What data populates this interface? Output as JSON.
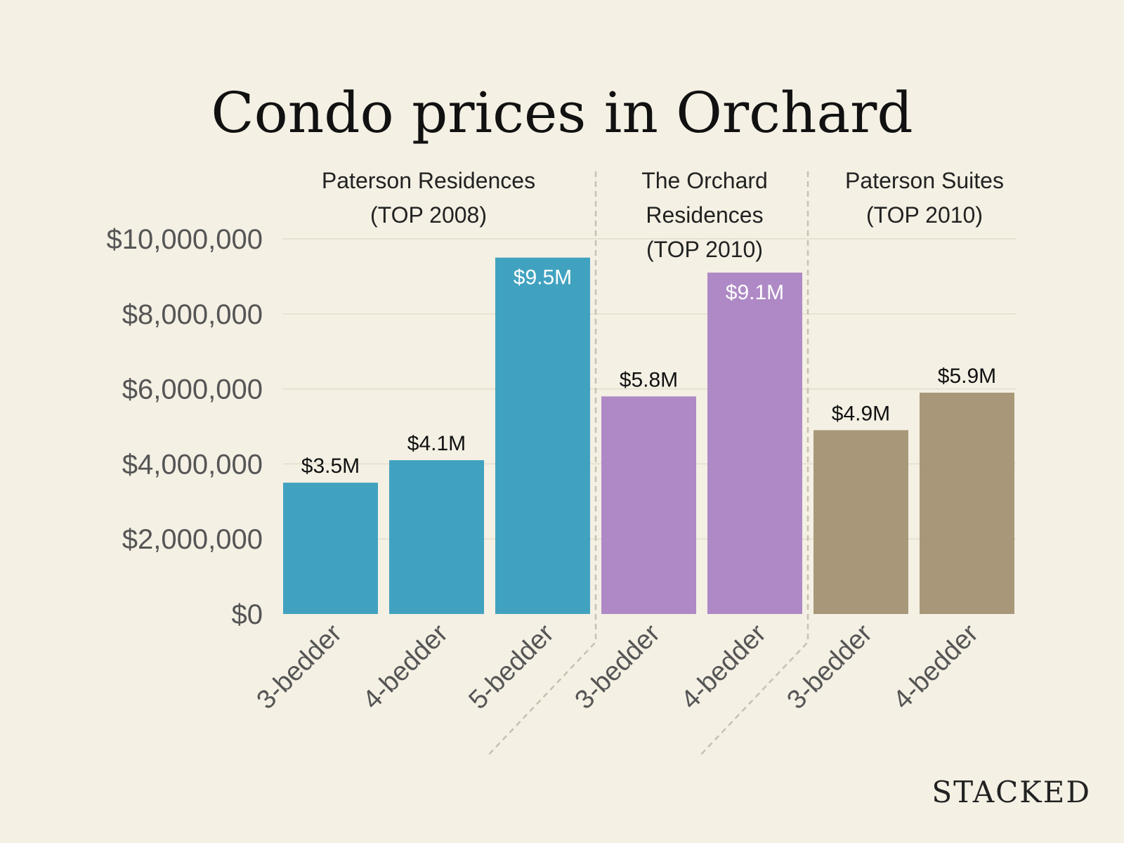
{
  "chart_data": {
    "type": "bar",
    "title": "Condo prices in Orchard",
    "xlabel": "",
    "ylabel": "",
    "ylim": [
      0,
      10000000
    ],
    "y_ticks": [
      "$0",
      "$2,000,000",
      "$4,000,000",
      "$6,000,000",
      "$8,000,000",
      "$10,000,000"
    ],
    "y_tick_values": [
      0,
      2000000,
      4000000,
      6000000,
      8000000,
      10000000
    ],
    "grid": true,
    "groups": [
      {
        "name_lines": [
          "Paterson Residences",
          "(TOP 2008)"
        ],
        "color": "#41a2c0",
        "bars": [
          {
            "category": "3-bedder",
            "value": 3500000,
            "label": "$3.5M",
            "label_inside": false
          },
          {
            "category": "4-bedder",
            "value": 4100000,
            "label": "$4.1M",
            "label_inside": false
          },
          {
            "category": "5-bedder",
            "value": 9500000,
            "label": "$9.5M",
            "label_inside": true
          }
        ]
      },
      {
        "name_lines": [
          "The Orchard",
          "Residences",
          "(TOP 2010)"
        ],
        "color": "#ae89c5",
        "bars": [
          {
            "category": "3-bedder",
            "value": 5800000,
            "label": "$5.8M",
            "label_inside": false
          },
          {
            "category": "4-bedder",
            "value": 9100000,
            "label": "$9.1M",
            "label_inside": true
          }
        ]
      },
      {
        "name_lines": [
          "Paterson Suites",
          "(TOP 2010)"
        ],
        "color": "#a89879",
        "bars": [
          {
            "category": "3-bedder",
            "value": 4900000,
            "label": "$4.9M",
            "label_inside": false
          },
          {
            "category": "4-bedder",
            "value": 5900000,
            "label": "$5.9M",
            "label_inside": false
          }
        ]
      }
    ]
  },
  "brand": "STACKED",
  "colors": {
    "background": "#f4f0e4",
    "label_dark": "#111111",
    "label_light": "#ffffff"
  }
}
